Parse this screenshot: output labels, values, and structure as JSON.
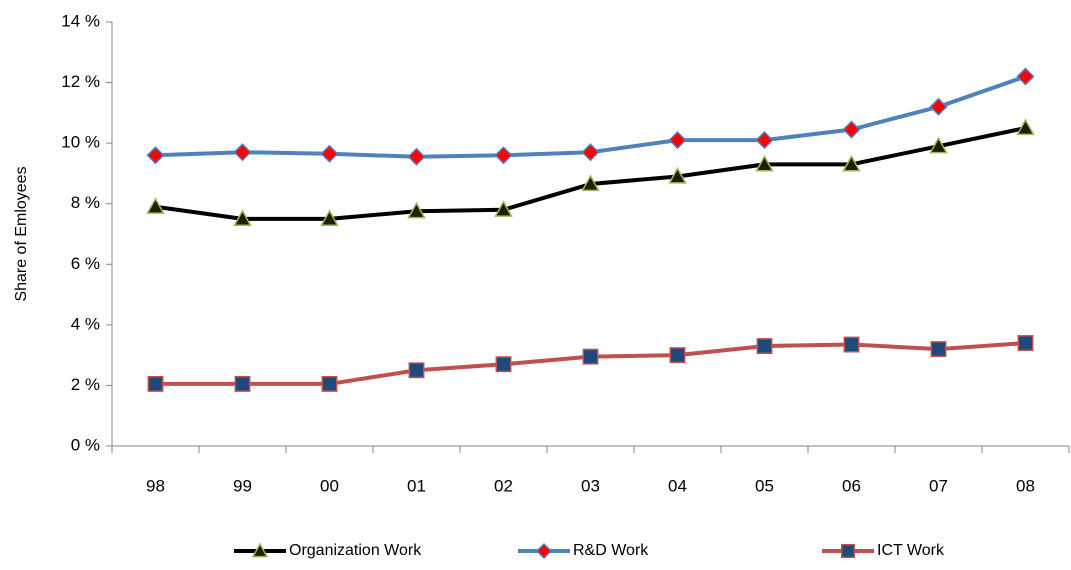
{
  "chart_data": {
    "type": "line",
    "y_label": "Share of Emloyees",
    "categories": [
      "98",
      "99",
      "00",
      "01",
      "02",
      "03",
      "04",
      "05",
      "06",
      "07",
      "08"
    ],
    "series": [
      {
        "name": "Organization Work",
        "color": "#000000",
        "marker": "triangle",
        "marker_fill": "#1f1f00",
        "marker_stroke": "#9bbb59",
        "values": [
          7.9,
          7.5,
          7.5,
          7.75,
          7.8,
          8.65,
          8.9,
          9.3,
          9.3,
          9.9,
          10.5
        ]
      },
      {
        "name": "R&D Work",
        "color": "#4f81bd",
        "marker": "diamond",
        "marker_fill": "#ff0000",
        "marker_stroke": "#4f81bd",
        "values": [
          9.6,
          9.7,
          9.65,
          9.55,
          9.6,
          9.7,
          10.1,
          10.1,
          10.45,
          11.2,
          12.2
        ]
      },
      {
        "name": "ICT Work",
        "color": "#c0504d",
        "marker": "square",
        "marker_fill": "#1f497d",
        "marker_stroke": "#c0504d",
        "values": [
          2.05,
          2.05,
          2.05,
          2.5,
          2.7,
          2.95,
          3.0,
          3.3,
          3.35,
          3.2,
          3.4
        ]
      }
    ],
    "ylim": [
      0,
      14
    ],
    "yticks": [
      {
        "value": 0,
        "label": "0 %"
      },
      {
        "value": 2,
        "label": "2 %"
      },
      {
        "value": 4,
        "label": "4 %"
      },
      {
        "value": 6,
        "label": "6 %"
      },
      {
        "value": 8,
        "label": "8 %"
      },
      {
        "value": 10,
        "label": "10 %"
      },
      {
        "value": 12,
        "label": "12 %"
      },
      {
        "value": 14,
        "label": "14 %"
      }
    ],
    "grid": false,
    "legend": "bottom"
  }
}
